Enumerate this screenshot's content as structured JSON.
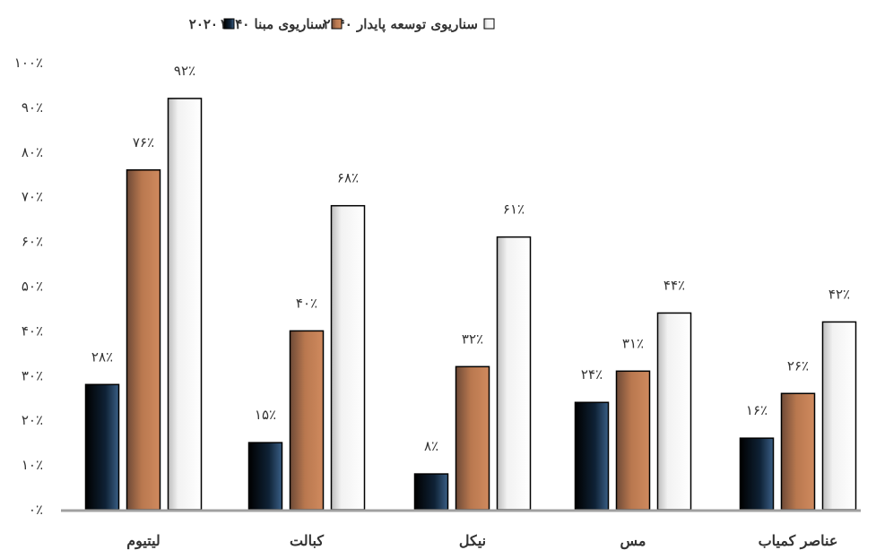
{
  "chart_data": {
    "type": "bar",
    "title": "",
    "xlabel": "",
    "ylabel": "",
    "categories": [
      "لیتیوم",
      "کبالت",
      "نیکل",
      "مس",
      "عناصر کمیاب"
    ],
    "series": [
      {
        "name": "۲۰۲۰",
        "values": [
          28,
          15,
          8,
          24,
          16
        ],
        "labels": [
          "۲۸٪",
          "۱۵٪",
          "۸٪",
          "۲۴٪",
          "۱۶٪"
        ],
        "color": "#0b1b2c"
      },
      {
        "name": "سناریوی مبنا ۲۰۴۰",
        "values": [
          76,
          40,
          32,
          31,
          26
        ],
        "labels": [
          "۷۶٪",
          "۴۰٪",
          "۳۲٪",
          "۳۱٪",
          "۲۶٪"
        ],
        "color": "#c77f55"
      },
      {
        "name": "سناریوی توسعه پایدار ۲۰۴۰",
        "values": [
          92,
          68,
          61,
          44,
          42
        ],
        "labels": [
          "۹۲٪",
          "۶۸٪",
          "۶۱٪",
          "۴۴٪",
          "۴۲٪"
        ],
        "color": "#f2f2f2"
      }
    ],
    "ylim": [
      0,
      100
    ],
    "yticks": [
      0,
      10,
      20,
      30,
      40,
      50,
      60,
      70,
      80,
      90,
      100
    ],
    "ytick_labels": [
      "۰٪",
      "۱۰٪",
      "۲۰٪",
      "۳۰٪",
      "۴۰٪",
      "۵۰٪",
      "۶۰٪",
      "۷۰٪",
      "۸۰٪",
      "۹۰٪",
      "۱۰۰٪"
    ],
    "grid": false,
    "legend_position": "top-center"
  }
}
